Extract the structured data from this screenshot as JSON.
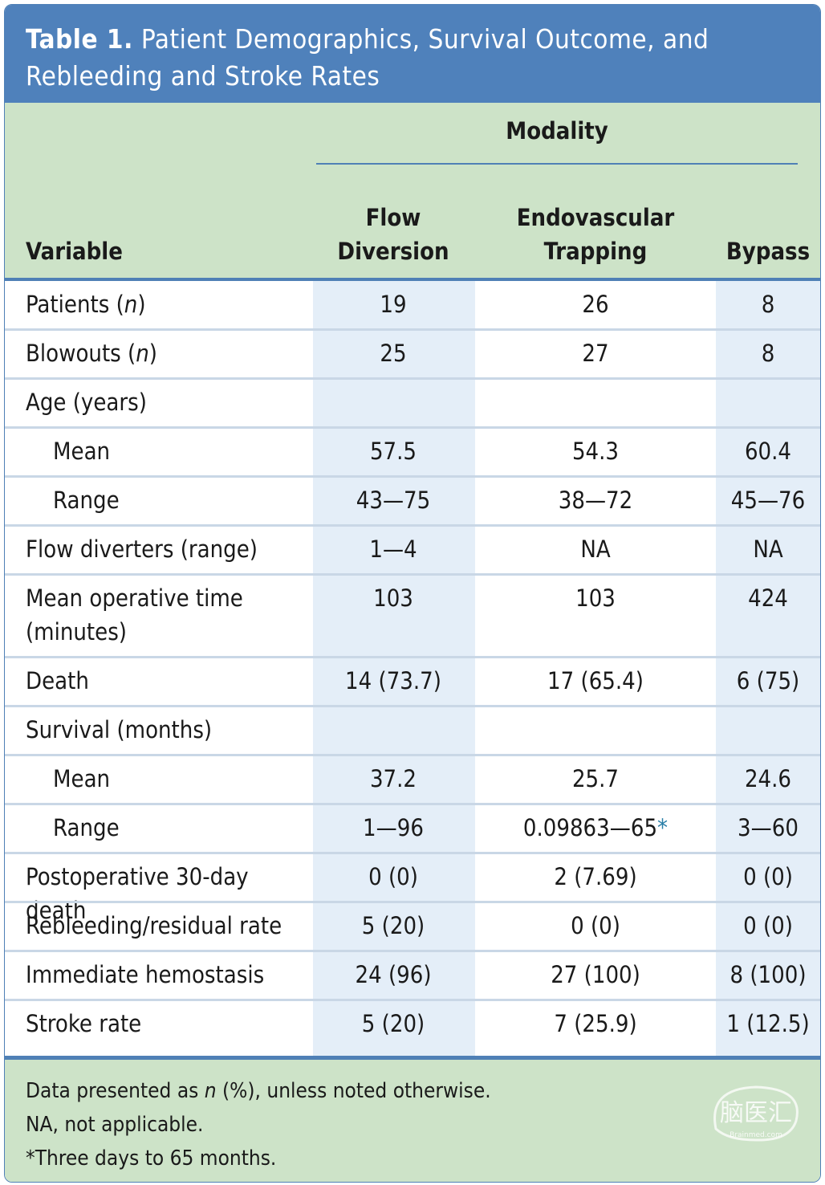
{
  "title": {
    "label": "Table 1.",
    "line1": "Patient Demographics, Survival Outcome, and",
    "line2": "Rebleeding and Stroke Rates"
  },
  "header": {
    "group": "Modality",
    "variable": "Variable",
    "col1_line1": "Flow",
    "col1_line2": "Diversion",
    "col2_line1": "Endovascular",
    "col2_line2": "Trapping",
    "col3": "Bypass"
  },
  "rows": [
    {
      "label": "Patients (",
      "label_italic": "n",
      "label_end": ")",
      "indent": false,
      "v1": "19",
      "v2": "26",
      "v3": "8"
    },
    {
      "label": "Blowouts (",
      "label_italic": "n",
      "label_end": ")",
      "indent": false,
      "v1": "25",
      "v2": "27",
      "v3": "8"
    },
    {
      "label": "Age (years)",
      "indent": false,
      "v1": "",
      "v2": "",
      "v3": ""
    },
    {
      "label": "Mean",
      "indent": true,
      "v1": "57.5",
      "v2": "54.3",
      "v3": "60.4"
    },
    {
      "label": "Range",
      "indent": true,
      "v1": "43—75",
      "v2": "38—72",
      "v3": "45—76"
    },
    {
      "label": "Flow diverters (range)",
      "indent": false,
      "v1": "1—4",
      "v2": "NA",
      "v3": "NA"
    },
    {
      "label": "Mean operative time",
      "label_line2": "(minutes)",
      "indent": false,
      "v1": "103",
      "v2": "103",
      "v3": "424"
    },
    {
      "label": "Death",
      "indent": false,
      "v1": "14 (73.7)",
      "v2": "17 (65.4)",
      "v3": "6 (75)"
    },
    {
      "label": "Survival (months)",
      "indent": false,
      "v1": "",
      "v2": "",
      "v3": ""
    },
    {
      "label": "Mean",
      "indent": true,
      "v1": "37.2",
      "v2": "25.7",
      "v3": "24.6"
    },
    {
      "label": "Range",
      "indent": true,
      "v1": "1—96",
      "v2": "0.09863—65",
      "v2_mark": "*",
      "v3": "3—60"
    },
    {
      "label": "Postoperative 30-day death",
      "indent": false,
      "v1": "0 (0)",
      "v2": "2 (7.69)",
      "v3": "0 (0)"
    },
    {
      "label": "Rebleeding/residual rate",
      "indent": false,
      "v1": "5 (20)",
      "v2": "0 (0)",
      "v3": "0 (0)"
    },
    {
      "label": "Immediate hemostasis",
      "indent": false,
      "v1": "24 (96)",
      "v2": "27 (100)",
      "v3": "8 (100)"
    },
    {
      "label": "Stroke rate",
      "indent": false,
      "v1": "5 (20)",
      "v2": "7 (25.9)",
      "v3": "1 (12.5)"
    }
  ],
  "footnotes": {
    "line1_pre": "Data presented as ",
    "line1_italic": "n",
    "line1_post": " (%), unless noted otherwise.",
    "line2": "NA, not applicable.",
    "line3": "*Three days to 65 months."
  },
  "watermark": {
    "text": "脑医汇",
    "sub": "Brainmed.com"
  },
  "colors": {
    "title_bg": "#4f81bb",
    "header_bg": "#cde3c8",
    "rule": "#4f80b6",
    "column_shade": "#e4eef8",
    "asterisk": "#2a7fa8"
  }
}
